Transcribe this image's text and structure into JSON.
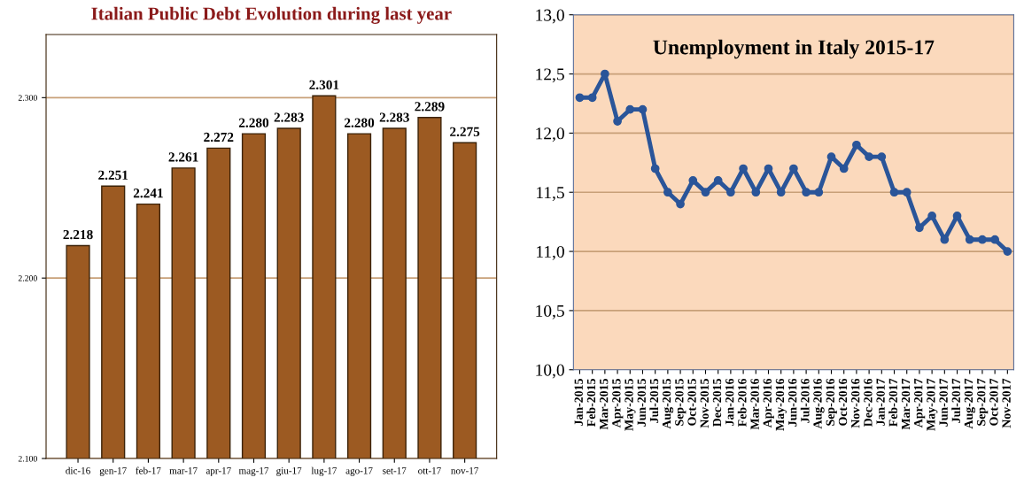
{
  "chart_data": [
    {
      "type": "bar",
      "title": "Italian Public Debt Evolution during last year",
      "categories": [
        "dic-16",
        "gen-17",
        "feb-17",
        "mar-17",
        "apr-17",
        "mag-17",
        "giu-17",
        "lug-17",
        "ago-17",
        "set-17",
        "ott-17",
        "nov-17"
      ],
      "values": [
        2218,
        2251,
        2241,
        2261,
        2272,
        2280,
        2283,
        2301,
        2280,
        2283,
        2289,
        2275
      ],
      "color": "#9c5a22",
      "value_labels": [
        "2.218",
        "2.251",
        "2.241",
        "2.261",
        "2.272",
        "2.280",
        "2.283",
        "2.301",
        "2.280",
        "2.283",
        "2.289",
        "2.275"
      ],
      "ylim": [
        2100,
        2335
      ],
      "yticks": [
        {
          "value": 2100,
          "label": "2.100"
        },
        {
          "value": 2200,
          "label": "2.200"
        },
        {
          "value": 2300,
          "label": "2.300"
        }
      ],
      "grid": "y"
    },
    {
      "type": "line",
      "title": "Unemployment in Italy 2015-17",
      "categories": [
        "Jan-2015",
        "Feb-2015",
        "Mar-2015",
        "Apr-2015",
        "May-2015",
        "Jun-2015",
        "Jul-2015",
        "Aug-2015",
        "Sep-2015",
        "Oct-2015",
        "Nov-2015",
        "Dec-2015",
        "Jan-2016",
        "Feb-2016",
        "Mar-2016",
        "Apr-2016",
        "May-2016",
        "Jun-2016",
        "Jul-2016",
        "Aug-2016",
        "Sep-2016",
        "Oct-2016",
        "Nov-2016",
        "Dec-2016",
        "Jan-2017",
        "Feb-2017",
        "Mar-2017",
        "Apr-2017",
        "May-2017",
        "Jun-2017",
        "Jul-2017",
        "Aug-2017",
        "Sep-2017",
        "Oct-2017",
        "Nov-2017"
      ],
      "series": [
        {
          "color": "#2a5599",
          "values": [
            12.3,
            12.3,
            12.5,
            12.1,
            12.2,
            12.2,
            11.7,
            11.5,
            11.4,
            11.6,
            11.5,
            11.6,
            11.5,
            11.7,
            11.5,
            11.7,
            11.5,
            11.7,
            11.5,
            11.5,
            11.8,
            11.7,
            11.9,
            11.8,
            11.8,
            11.5,
            11.5,
            11.2,
            11.3,
            11.1,
            11.3,
            11.1,
            11.1,
            11.1,
            11.0
          ]
        }
      ],
      "ylim": [
        10,
        13
      ],
      "yticks": [
        {
          "value": 10,
          "label": "10,0"
        },
        {
          "value": 10.5,
          "label": "10,5"
        },
        {
          "value": 11,
          "label": "11,0"
        },
        {
          "value": 11.5,
          "label": "11,5"
        },
        {
          "value": 12,
          "label": "12,0"
        },
        {
          "value": 12.5,
          "label": "12,5"
        },
        {
          "value": 13,
          "label": "13,0"
        }
      ],
      "grid": "y",
      "marker": "circle",
      "line_style": "solid"
    }
  ]
}
